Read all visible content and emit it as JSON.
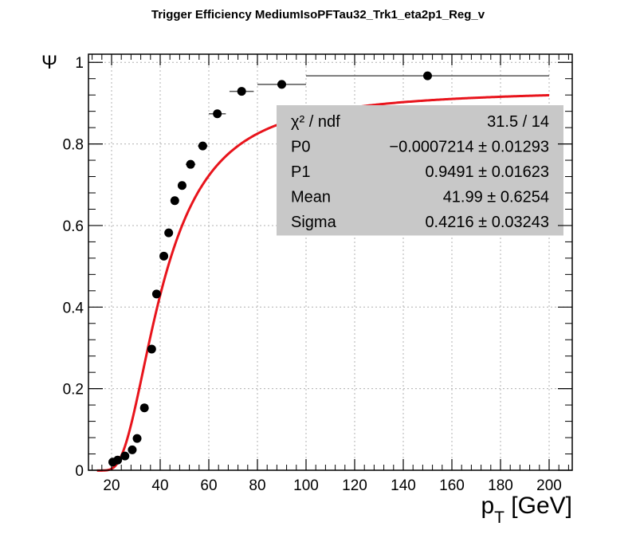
{
  "chart_data": {
    "type": "scatter",
    "title": "Trigger Efficiency MediumIsoPFTau32_Trk1_eta2p1_Reg_v",
    "xlabel_main": "p",
    "xlabel_sub": "T",
    "xlabel_unit": " [GeV]",
    "ylabel": "Ψ",
    "xlim": [
      10,
      210
    ],
    "ylim": [
      0,
      1.02
    ],
    "x_ticks": [
      20,
      40,
      60,
      80,
      100,
      120,
      140,
      160,
      180,
      200
    ],
    "y_ticks": [
      0,
      0.2,
      0.4,
      0.6,
      0.8,
      1
    ],
    "y_tick_labels": [
      "0",
      "0.2",
      "0.4",
      "0.6",
      "0.8",
      "1"
    ],
    "grid": true,
    "series": [
      {
        "color": "#000000",
        "points": [
          {
            "x": 20.5,
            "y": 0.02,
            "xerr": 0.5
          },
          {
            "x": 22.5,
            "y": 0.025,
            "xerr": 0.5
          },
          {
            "x": 25.5,
            "y": 0.035,
            "xerr": 0.5
          },
          {
            "x": 28.5,
            "y": 0.05,
            "xerr": 0.5
          },
          {
            "x": 30.5,
            "y": 0.078,
            "xerr": 0.5
          },
          {
            "x": 33.5,
            "y": 0.153,
            "xerr": 0.5
          },
          {
            "x": 36.5,
            "y": 0.297,
            "xerr": 0.5
          },
          {
            "x": 38.5,
            "y": 0.432,
            "xerr": 0.5
          },
          {
            "x": 41.5,
            "y": 0.525,
            "xerr": 0.5
          },
          {
            "x": 43.5,
            "y": 0.582,
            "xerr": 0.5
          },
          {
            "x": 46.0,
            "y": 0.661,
            "xerr": 1.0
          },
          {
            "x": 49.0,
            "y": 0.698,
            "xerr": 1.0
          },
          {
            "x": 52.5,
            "y": 0.75,
            "xerr": 2.0
          },
          {
            "x": 57.5,
            "y": 0.795,
            "xerr": 2.0
          },
          {
            "x": 63.5,
            "y": 0.874,
            "xerr": 3.5
          },
          {
            "x": 73.5,
            "y": 0.929,
            "xerr": 5.0
          },
          {
            "x": 90.0,
            "y": 0.946,
            "xerr": 10.0
          },
          {
            "x": 150.0,
            "y": 0.967,
            "xerr": 50.0
          }
        ]
      }
    ],
    "fit": {
      "color": "#e8141c",
      "x_range": [
        14,
        200
      ],
      "p0": -0.0007214,
      "p1": 0.9491,
      "mean": 41.99,
      "sigma": 0.4216
    },
    "stats_box": {
      "rows": [
        {
          "label": "χ² / ndf",
          "value": "31.5 / 14"
        },
        {
          "label": "P0",
          "value": "−0.0007214 ± 0.01293"
        },
        {
          "label": "P1",
          "value": "0.9491 ± 0.01623"
        },
        {
          "label": "Mean",
          "value": "41.99 ± 0.6254"
        },
        {
          "label": "Sigma",
          "value": "0.4216 ± 0.03243"
        }
      ]
    }
  }
}
